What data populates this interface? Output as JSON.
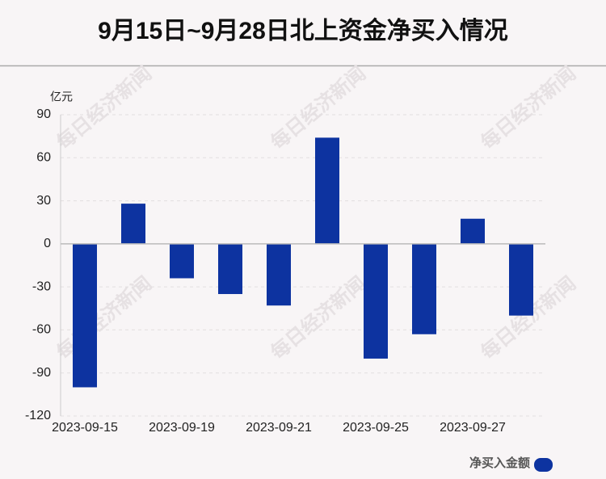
{
  "chart_data": {
    "type": "bar",
    "title": "9月15日~9月28日北上资金净买入情况",
    "y_unit": "亿元",
    "watermark": "每日经济新闻",
    "categories": [
      "2023-09-15",
      null,
      "2023-09-19",
      null,
      "2023-09-21",
      null,
      "2023-09-25",
      null,
      "2023-09-27",
      null
    ],
    "series": [
      {
        "name": "净买入金额",
        "color": "#0d33a0",
        "values": [
          -100,
          28,
          -24,
          -35,
          -43,
          74,
          -80,
          -63,
          17.5,
          -50
        ]
      }
    ],
    "ylim": [
      -120,
      90
    ],
    "yticks": [
      -120,
      -90,
      -60,
      -30,
      0,
      30,
      60,
      90
    ],
    "grid": true
  }
}
